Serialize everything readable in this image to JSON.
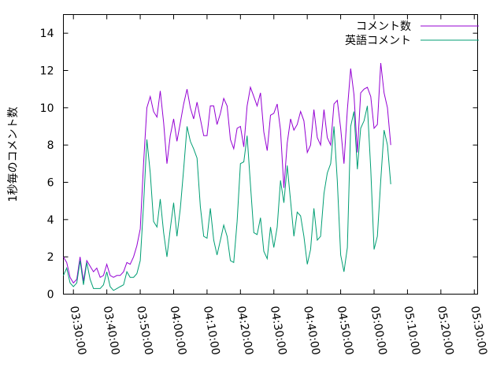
{
  "chart_data": {
    "type": "line",
    "ylabel": "1秒毎のコメント数",
    "xlabel": "",
    "ylim": [
      0,
      15
    ],
    "yticks": [
      0,
      2,
      4,
      6,
      8,
      10,
      12,
      14
    ],
    "xlim": [
      "03:27:00",
      "05:31:00"
    ],
    "xticks": [
      "03:30:00",
      "03:40:00",
      "03:50:00",
      "04:00:00",
      "04:10:00",
      "04:20:00",
      "04:30:00",
      "04:40:00",
      "04:50:00",
      "05:00:00",
      "05:10:00",
      "05:20:00",
      "05:30:00"
    ],
    "grid": false,
    "legend": "top-right",
    "series": [
      {
        "name": "コメント数",
        "color": "#9400d3",
        "points": [
          [
            "03:27:00",
            2.0
          ],
          [
            "03:28:00",
            1.7
          ],
          [
            "03:29:00",
            0.9
          ],
          [
            "03:30:00",
            0.6
          ],
          [
            "03:31:00",
            0.8
          ],
          [
            "03:32:00",
            2.0
          ],
          [
            "03:33:00",
            0.7
          ],
          [
            "03:34:00",
            1.8
          ],
          [
            "03:35:00",
            1.5
          ],
          [
            "03:36:00",
            1.2
          ],
          [
            "03:37:00",
            1.4
          ],
          [
            "03:38:00",
            0.9
          ],
          [
            "03:39:00",
            1.0
          ],
          [
            "03:40:00",
            1.6
          ],
          [
            "03:41:00",
            1.0
          ],
          [
            "03:42:00",
            0.9
          ],
          [
            "03:43:00",
            1.0
          ],
          [
            "03:44:00",
            1.0
          ],
          [
            "03:45:00",
            1.2
          ],
          [
            "03:46:00",
            1.7
          ],
          [
            "03:47:00",
            1.6
          ],
          [
            "03:48:00",
            2.0
          ],
          [
            "03:49:00",
            2.6
          ],
          [
            "03:50:00",
            3.5
          ],
          [
            "03:51:00",
            7.0
          ],
          [
            "03:52:00",
            10.0
          ],
          [
            "03:53:00",
            10.6
          ],
          [
            "03:54:00",
            9.8
          ],
          [
            "03:55:00",
            9.5
          ],
          [
            "03:56:00",
            10.9
          ],
          [
            "03:57:00",
            9.2
          ],
          [
            "03:58:00",
            7.0
          ],
          [
            "03:59:00",
            8.5
          ],
          [
            "04:00:00",
            9.4
          ],
          [
            "04:01:00",
            8.2
          ],
          [
            "04:02:00",
            9.2
          ],
          [
            "04:03:00",
            10.2
          ],
          [
            "04:04:00",
            11.0
          ],
          [
            "04:05:00",
            10.0
          ],
          [
            "04:06:00",
            9.4
          ],
          [
            "04:07:00",
            10.3
          ],
          [
            "04:08:00",
            9.4
          ],
          [
            "04:09:00",
            8.5
          ],
          [
            "04:10:00",
            8.5
          ],
          [
            "04:11:00",
            10.1
          ],
          [
            "04:12:00",
            10.1
          ],
          [
            "04:13:00",
            9.1
          ],
          [
            "04:14:00",
            9.7
          ],
          [
            "04:15:00",
            10.5
          ],
          [
            "04:16:00",
            10.1
          ],
          [
            "04:17:00",
            8.3
          ],
          [
            "04:18:00",
            7.8
          ],
          [
            "04:19:00",
            8.9
          ],
          [
            "04:20:00",
            9.0
          ],
          [
            "04:21:00",
            7.9
          ],
          [
            "04:22:00",
            10.1
          ],
          [
            "04:23:00",
            11.1
          ],
          [
            "04:24:00",
            10.6
          ],
          [
            "04:25:00",
            10.1
          ],
          [
            "04:26:00",
            10.8
          ],
          [
            "04:27:00",
            8.7
          ],
          [
            "04:28:00",
            7.7
          ],
          [
            "04:29:00",
            9.6
          ],
          [
            "04:30:00",
            9.7
          ],
          [
            "04:31:00",
            10.2
          ],
          [
            "04:32:00",
            8.8
          ],
          [
            "04:33:00",
            5.7
          ],
          [
            "04:34:00",
            8.1
          ],
          [
            "04:35:00",
            9.4
          ],
          [
            "04:36:00",
            8.8
          ],
          [
            "04:37:00",
            9.1
          ],
          [
            "04:38:00",
            9.8
          ],
          [
            "04:39:00",
            9.3
          ],
          [
            "04:40:00",
            7.6
          ],
          [
            "04:41:00",
            8.0
          ],
          [
            "04:42:00",
            9.9
          ],
          [
            "04:43:00",
            8.4
          ],
          [
            "04:44:00",
            8.0
          ],
          [
            "04:45:00",
            9.9
          ],
          [
            "04:46:00",
            8.4
          ],
          [
            "04:47:00",
            8.0
          ],
          [
            "04:48:00",
            10.2
          ],
          [
            "04:49:00",
            10.4
          ],
          [
            "04:50:00",
            8.9
          ],
          [
            "04:51:00",
            7.0
          ],
          [
            "04:52:00",
            9.9
          ],
          [
            "04:53:00",
            12.1
          ],
          [
            "04:54:00",
            10.7
          ],
          [
            "04:55:00",
            7.6
          ],
          [
            "04:56:00",
            10.8
          ],
          [
            "04:57:00",
            11.0
          ],
          [
            "04:58:00",
            11.1
          ],
          [
            "04:59:00",
            10.6
          ],
          [
            "05:00:00",
            8.9
          ],
          [
            "05:01:00",
            9.1
          ],
          [
            "05:02:00",
            12.4
          ],
          [
            "05:03:00",
            10.8
          ],
          [
            "05:04:00",
            10.0
          ],
          [
            "05:05:00",
            8.0
          ]
        ]
      },
      {
        "name": "英語コメント",
        "color": "#009e73",
        "points": [
          [
            "03:27:00",
            1.0
          ],
          [
            "03:28:00",
            1.4
          ],
          [
            "03:29:00",
            0.6
          ],
          [
            "03:30:00",
            0.4
          ],
          [
            "03:31:00",
            0.6
          ],
          [
            "03:32:00",
            1.8
          ],
          [
            "03:33:00",
            0.5
          ],
          [
            "03:34:00",
            1.7
          ],
          [
            "03:35:00",
            0.8
          ],
          [
            "03:36:00",
            0.3
          ],
          [
            "03:37:00",
            0.3
          ],
          [
            "03:38:00",
            0.3
          ],
          [
            "03:39:00",
            0.5
          ],
          [
            "03:40:00",
            1.2
          ],
          [
            "03:41:00",
            0.4
          ],
          [
            "03:42:00",
            0.2
          ],
          [
            "03:43:00",
            0.3
          ],
          [
            "03:44:00",
            0.4
          ],
          [
            "03:45:00",
            0.5
          ],
          [
            "03:46:00",
            1.2
          ],
          [
            "03:47:00",
            0.9
          ],
          [
            "03:48:00",
            0.9
          ],
          [
            "03:49:00",
            1.1
          ],
          [
            "03:50:00",
            1.8
          ],
          [
            "03:51:00",
            4.8
          ],
          [
            "03:52:00",
            8.3
          ],
          [
            "03:53:00",
            6.5
          ],
          [
            "03:54:00",
            3.9
          ],
          [
            "03:55:00",
            3.6
          ],
          [
            "03:56:00",
            5.1
          ],
          [
            "03:57:00",
            3.3
          ],
          [
            "03:58:00",
            2.0
          ],
          [
            "03:59:00",
            3.5
          ],
          [
            "04:00:00",
            4.9
          ],
          [
            "04:01:00",
            3.1
          ],
          [
            "04:02:00",
            4.6
          ],
          [
            "04:03:00",
            6.7
          ],
          [
            "04:04:00",
            9.0
          ],
          [
            "04:05:00",
            8.2
          ],
          [
            "04:06:00",
            7.8
          ],
          [
            "04:07:00",
            7.3
          ],
          [
            "04:08:00",
            4.7
          ],
          [
            "04:09:00",
            3.1
          ],
          [
            "04:10:00",
            3.0
          ],
          [
            "04:11:00",
            4.6
          ],
          [
            "04:12:00",
            2.9
          ],
          [
            "04:13:00",
            2.1
          ],
          [
            "04:14:00",
            2.9
          ],
          [
            "04:15:00",
            3.7
          ],
          [
            "04:16:00",
            3.1
          ],
          [
            "04:17:00",
            1.8
          ],
          [
            "04:18:00",
            1.7
          ],
          [
            "04:19:00",
            3.9
          ],
          [
            "04:20:00",
            7.0
          ],
          [
            "04:21:00",
            7.1
          ],
          [
            "04:22:00",
            8.5
          ],
          [
            "04:23:00",
            5.9
          ],
          [
            "04:24:00",
            3.3
          ],
          [
            "04:25:00",
            3.2
          ],
          [
            "04:26:00",
            4.1
          ],
          [
            "04:27:00",
            2.3
          ],
          [
            "04:28:00",
            1.9
          ],
          [
            "04:29:00",
            3.6
          ],
          [
            "04:30:00",
            2.5
          ],
          [
            "04:31:00",
            3.6
          ],
          [
            "04:32:00",
            6.1
          ],
          [
            "04:33:00",
            4.9
          ],
          [
            "04:34:00",
            6.9
          ],
          [
            "04:35:00",
            5.0
          ],
          [
            "04:36:00",
            3.1
          ],
          [
            "04:37:00",
            4.4
          ],
          [
            "04:38:00",
            4.2
          ],
          [
            "04:39:00",
            3.1
          ],
          [
            "04:40:00",
            1.6
          ],
          [
            "04:41:00",
            2.4
          ],
          [
            "04:42:00",
            4.6
          ],
          [
            "04:43:00",
            2.9
          ],
          [
            "04:44:00",
            3.1
          ],
          [
            "04:45:00",
            5.4
          ],
          [
            "04:46:00",
            6.5
          ],
          [
            "04:47:00",
            7.0
          ],
          [
            "04:48:00",
            9.0
          ],
          [
            "04:49:00",
            6.1
          ],
          [
            "04:50:00",
            2.1
          ],
          [
            "04:51:00",
            1.2
          ],
          [
            "04:52:00",
            2.5
          ],
          [
            "04:53:00",
            9.0
          ],
          [
            "04:54:00",
            9.8
          ],
          [
            "04:55:00",
            6.7
          ],
          [
            "04:56:00",
            8.9
          ],
          [
            "04:57:00",
            9.3
          ],
          [
            "04:58:00",
            10.1
          ],
          [
            "04:59:00",
            6.7
          ],
          [
            "05:00:00",
            2.4
          ],
          [
            "05:01:00",
            3.1
          ],
          [
            "05:02:00",
            6.1
          ],
          [
            "05:03:00",
            8.8
          ],
          [
            "05:04:00",
            8.0
          ],
          [
            "05:05:00",
            5.9
          ]
        ]
      }
    ]
  }
}
